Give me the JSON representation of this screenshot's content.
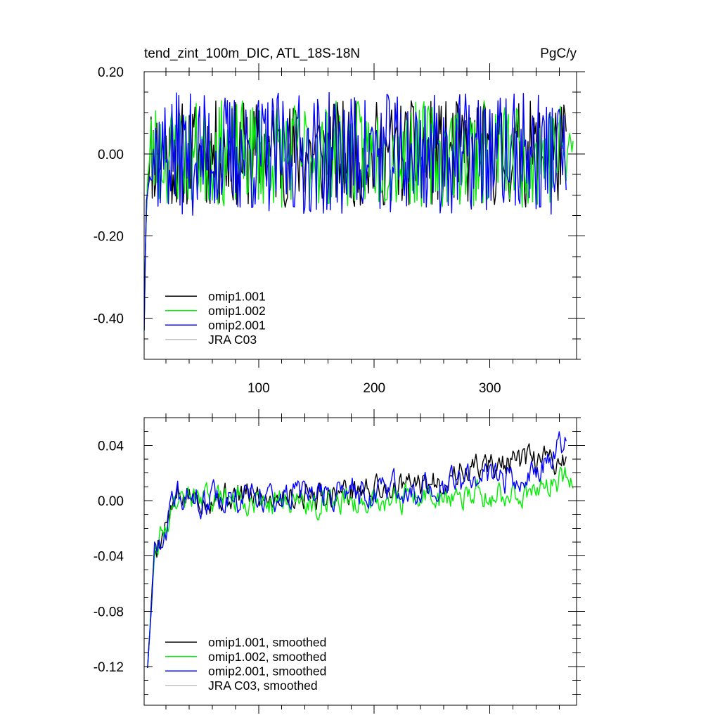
{
  "figure": {
    "top_title_left": "tend_zint_100m_DIC, ATL_18S-18N",
    "top_title_right": "PgC/y"
  },
  "colors": {
    "omip1_001": "#000000",
    "omip1_002": "#00ee00",
    "omip2_001": "#0000ff",
    "jra_c03": "#c0c0c0"
  },
  "chart_data": [
    {
      "type": "line",
      "panel": "top",
      "title": "tend_zint_100m_DIC, ATL_18S-18N",
      "units": "PgC/y",
      "xlim": [
        1,
        375
      ],
      "ylim": [
        -0.5,
        0.2
      ],
      "x_major_ticks": [
        100,
        200,
        300
      ],
      "x_tick_labels": [
        "100",
        "200",
        "300"
      ],
      "y_major_ticks": [
        -0.4,
        -0.2,
        0.0,
        0.2
      ],
      "y_tick_labels": [
        "-0.40",
        "-0.20",
        "0.00",
        "0.20"
      ],
      "y_minor_step": 0.05,
      "x_minor_step": 20,
      "legend": [
        "omip1.001",
        "omip1.002",
        "omip2.001",
        "JRA C03"
      ],
      "legend_location": "bottom-left",
      "series": [
        {
          "name": "omip1.001",
          "color": "#000000",
          "x_range": [
            1,
            366
          ],
          "start_value": -0.43,
          "mean": 0.0,
          "amplitude": 0.13,
          "seed": 11
        },
        {
          "name": "omip1.002",
          "color": "#00ee00",
          "x_range": [
            1,
            372
          ],
          "start_value": -0.43,
          "mean": 0.0,
          "amplitude": 0.13,
          "seed": 23
        },
        {
          "name": "omip2.001",
          "color": "#0000ff",
          "x_range": [
            1,
            366
          ],
          "start_value": -0.43,
          "mean": 0.0,
          "amplitude": 0.15,
          "seed": 37
        },
        {
          "name": "JRA C03",
          "color": "#c0c0c0",
          "x_range": [],
          "values": []
        }
      ]
    },
    {
      "type": "line",
      "panel": "bottom",
      "title": "",
      "xlim": [
        1,
        375
      ],
      "ylim": [
        -0.148,
        0.06
      ],
      "x_major_ticks": [
        100,
        200,
        300
      ],
      "x_tick_labels": [],
      "y_major_ticks": [
        -0.12,
        -0.08,
        -0.04,
        0.0,
        0.04
      ],
      "y_tick_labels": [
        "-0.12",
        "-0.08",
        "-0.04",
        "0.00",
        "0.04"
      ],
      "y_minor_step": 0.01,
      "x_minor_step": 20,
      "legend": [
        "omip1.001, smoothed",
        "omip1.002, smoothed",
        "omip2.001, smoothed",
        "JRA C03, smoothed"
      ],
      "legend_location": "bottom-left",
      "series": [
        {
          "name": "omip1.001, smoothed",
          "color": "#000000",
          "x_range": [
            4,
            366
          ],
          "start_value": -0.121,
          "trend": [
            [
              4,
              -0.121
            ],
            [
              10,
              -0.035
            ],
            [
              30,
              0.002
            ],
            [
              150,
              0.005
            ],
            [
              250,
              0.012
            ],
            [
              290,
              0.025
            ],
            [
              366,
              0.03
            ]
          ],
          "amplitude": 0.018,
          "seed": 5
        },
        {
          "name": "omip1.002, smoothed",
          "color": "#00ee00",
          "x_range": [
            4,
            372
          ],
          "start_value": -0.121,
          "trend": [
            [
              4,
              -0.121
            ],
            [
              10,
              -0.035
            ],
            [
              30,
              0.002
            ],
            [
              150,
              0.0
            ],
            [
              250,
              0.002
            ],
            [
              330,
              0.005
            ],
            [
              372,
              0.02
            ]
          ],
          "amplitude": 0.018,
          "seed": 9
        },
        {
          "name": "omip2.001, smoothed",
          "color": "#0000ff",
          "x_range": [
            4,
            366
          ],
          "start_value": -0.121,
          "trend": [
            [
              4,
              -0.121
            ],
            [
              10,
              -0.035
            ],
            [
              30,
              0.0
            ],
            [
              150,
              0.004
            ],
            [
              250,
              0.01
            ],
            [
              330,
              0.02
            ],
            [
              366,
              0.04
            ]
          ],
          "amplitude": 0.02,
          "seed": 15
        },
        {
          "name": "JRA C03, smoothed",
          "color": "#c0c0c0",
          "x_range": [],
          "values": []
        }
      ]
    }
  ]
}
